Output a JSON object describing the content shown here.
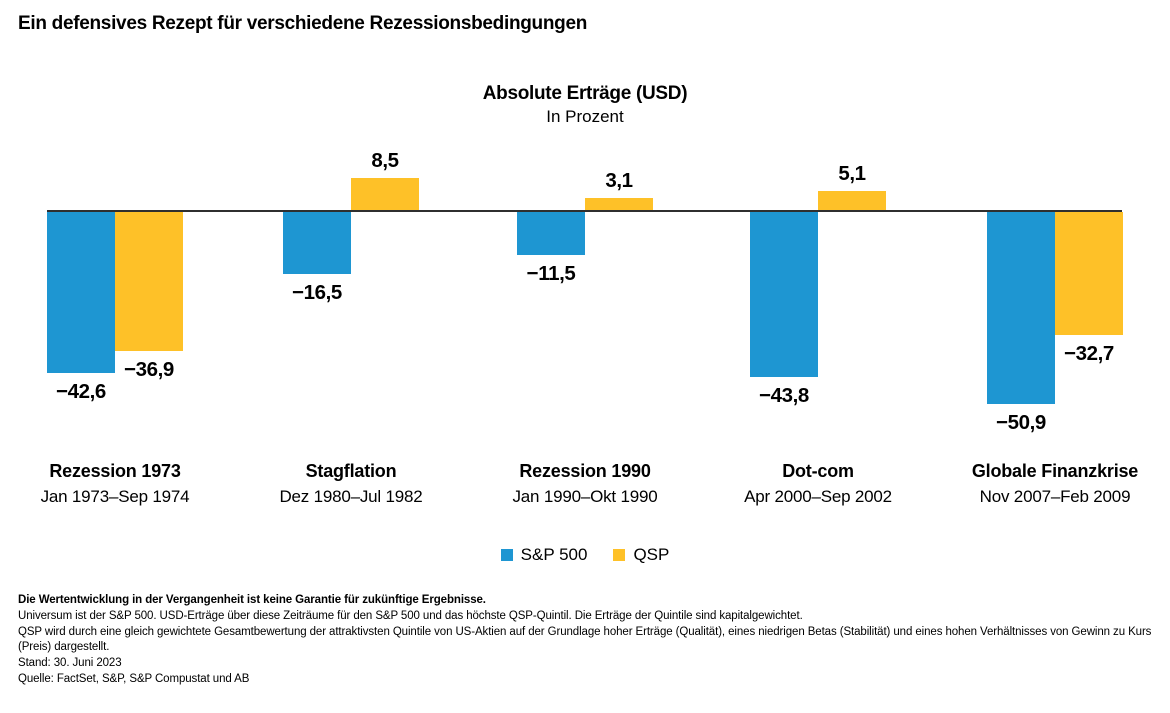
{
  "page": {
    "title": "Ein defensives Rezept für verschiedene Rezessionsbedingungen"
  },
  "chart_data": {
    "type": "bar",
    "title": "Absolute Erträge (USD)",
    "subtitle": "In Prozent",
    "baseline": 0,
    "ylim": [
      -55,
      12
    ],
    "grid": false,
    "legend_position": "bottom-center",
    "axis_color": "#2f2f2f",
    "categories": [
      {
        "name": "Rezession 1973",
        "period": "Jan 1973–Sep 1974"
      },
      {
        "name": "Stagflation",
        "period": "Dez 1980–Jul 1982"
      },
      {
        "name": "Rezession 1990",
        "period": "Jan 1990–Okt 1990"
      },
      {
        "name": "Dot-com",
        "period": "Apr 2000–Sep 2002"
      },
      {
        "name": "Globale Finanzkrise",
        "period": "Nov 2007–Feb 2009"
      }
    ],
    "series": [
      {
        "name": "S&P 500",
        "key": "sp500",
        "color": "#1E96D2",
        "values": [
          -42.6,
          -16.5,
          -11.5,
          -43.8,
          -50.9
        ],
        "value_labels": [
          "−42,6",
          "−16,5",
          "−11,5",
          "−43,8",
          "−50,9"
        ]
      },
      {
        "name": "QSP",
        "key": "qsp",
        "color": "#FEC128",
        "values": [
          -36.9,
          8.5,
          3.1,
          5.1,
          -32.7
        ],
        "value_labels": [
          "−36,9",
          "8,5",
          "3,1",
          "5,1",
          "−32,7"
        ]
      }
    ]
  },
  "footnotes": {
    "lines": [
      {
        "text": "Die Wertentwicklung in der Vergangenheit ist keine Garantie für zukünftige Ergebnisse.",
        "bold": true
      },
      {
        "text": "Universum ist der S&P 500. USD-Erträge über diese Zeiträume für den S&P 500 und das höchste QSP-Quintil. Die Erträge der Quintile sind kapitalgewichtet.",
        "bold": false
      },
      {
        "text": "QSP wird durch eine gleich gewichtete Gesamtbewertung der attraktivsten Quintile von US-Aktien auf der Grundlage hoher Erträge (Qualität), eines niedrigen Betas (Stabilität) und eines hohen Verhältnisses von Gewinn zu Kurs (Preis) dargestellt.",
        "bold": false
      },
      {
        "text": "Stand: 30. Juni 2023",
        "bold": false
      },
      {
        "text": "Quelle: FactSet, S&P, S&P Compustat und AB",
        "bold": false
      }
    ]
  }
}
